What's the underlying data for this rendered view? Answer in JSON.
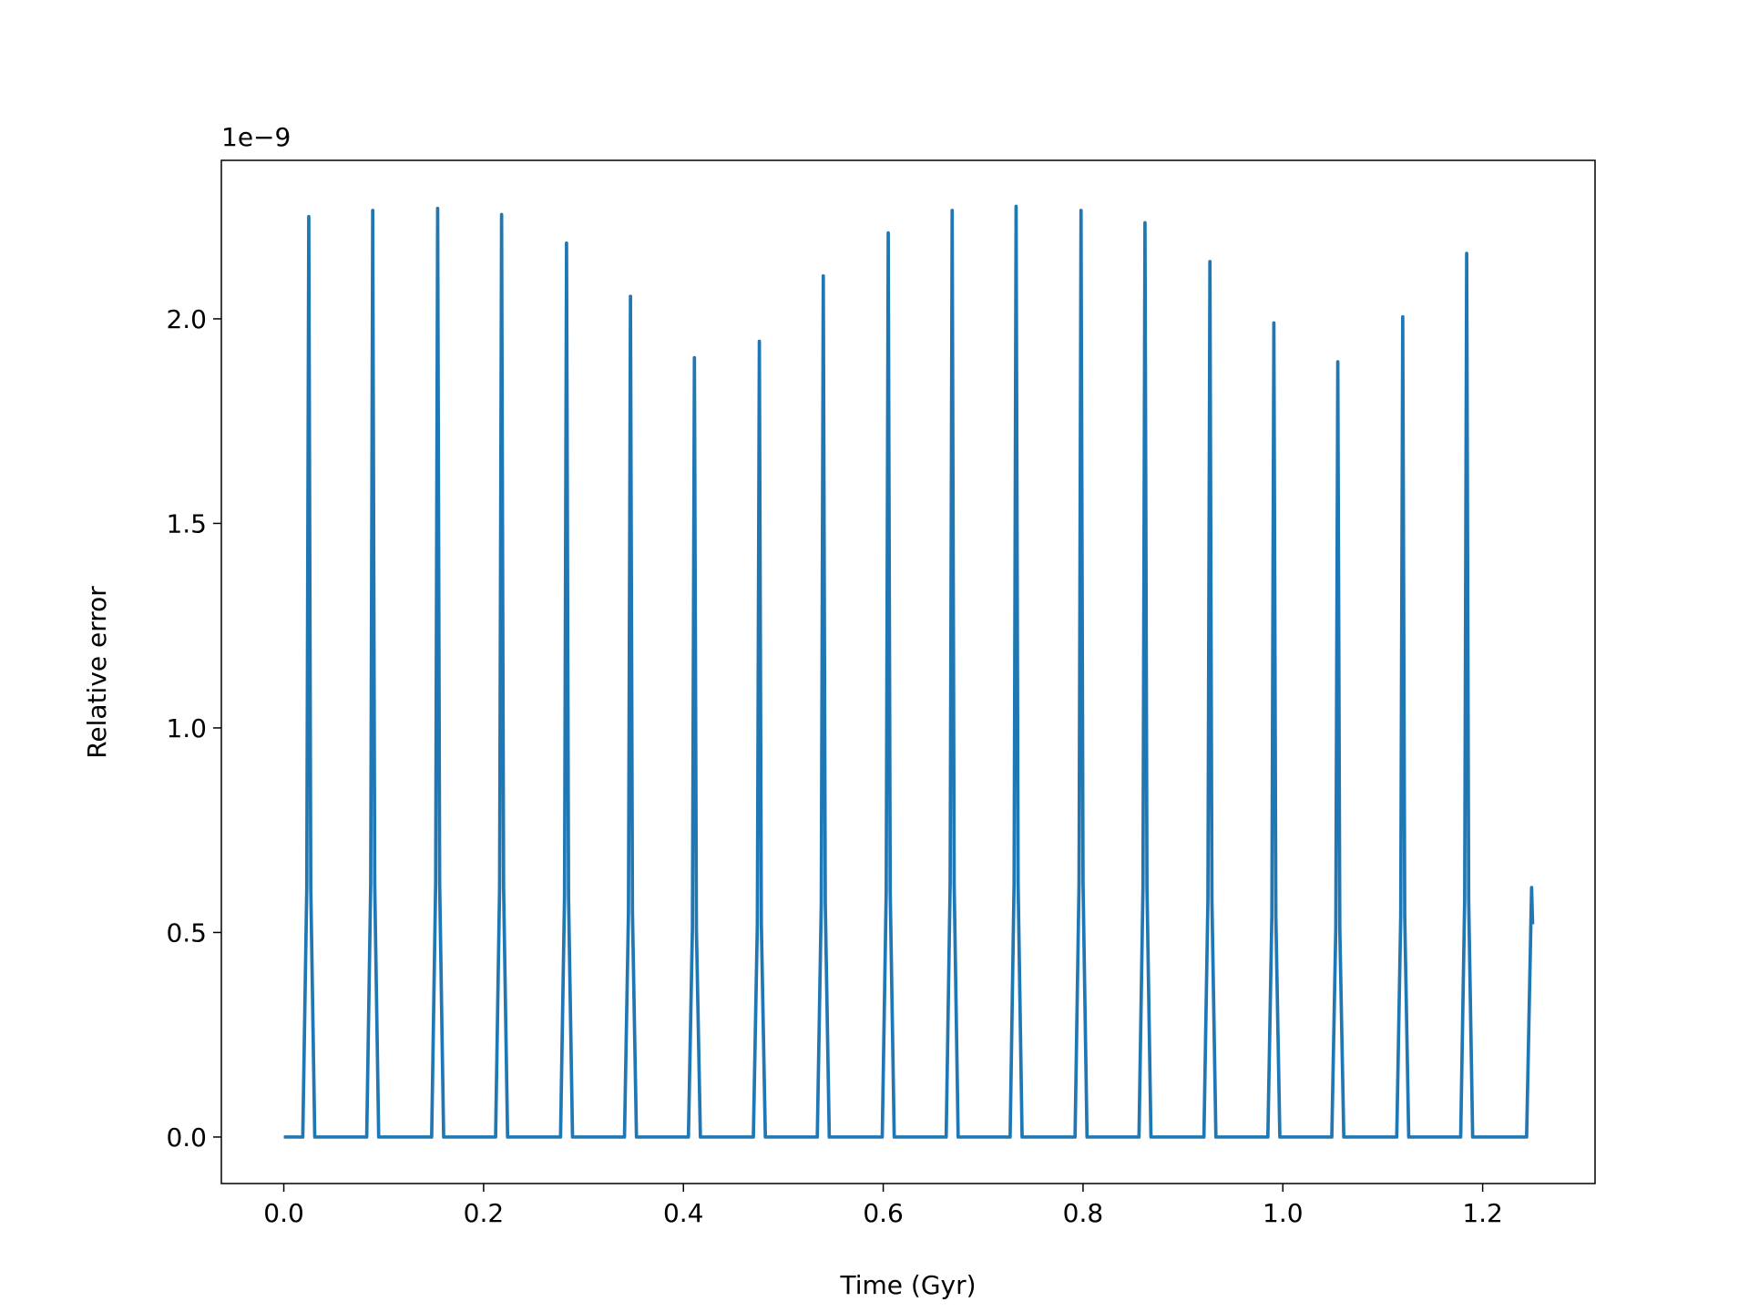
{
  "chart_data": {
    "type": "line",
    "xlabel": "Time (Gyr)",
    "ylabel": "Relative error",
    "offset_label": "1e−9",
    "xlim": [
      -0.0625,
      1.3125
    ],
    "ylim": [
      -0.1137,
      2.3874
    ],
    "xticks": [
      {
        "value": 0,
        "label": "0.0"
      },
      0.2,
      0.4,
      0.6,
      0.8,
      {
        "value": 1,
        "label": "1.0"
      },
      1.2
    ],
    "yticks": [
      {
        "value": 0,
        "label": "0.0"
      },
      0.5,
      {
        "value": 1,
        "label": "1.0"
      },
      1.5,
      {
        "value": 2,
        "label": "2.0"
      }
    ],
    "series": [
      {
        "color": "#1f77b4",
        "x": [
          0,
          0.019,
          0.023,
          0.025,
          0.027,
          0.031,
          0.083,
          0.087,
          0.089,
          0.091,
          0.095,
          0.148,
          0.152,
          0.154,
          0.156,
          0.16,
          0.212,
          0.216,
          0.218,
          0.22,
          0.224,
          0.277,
          0.281,
          0.283,
          0.285,
          0.289,
          0.341,
          0.345,
          0.347,
          0.349,
          0.353,
          0.405,
          0.409,
          0.411,
          0.413,
          0.417,
          0.47,
          0.474,
          0.476,
          0.478,
          0.482,
          0.534,
          0.538,
          0.54,
          0.542,
          0.546,
          0.599,
          0.603,
          0.605,
          0.607,
          0.611,
          0.663,
          0.667,
          0.669,
          0.671,
          0.675,
          0.727,
          0.731,
          0.733,
          0.735,
          0.739,
          0.792,
          0.796,
          0.798,
          0.8,
          0.804,
          0.856,
          0.86,
          0.862,
          0.864,
          0.868,
          0.921,
          0.925,
          0.927,
          0.929,
          0.933,
          0.985,
          0.989,
          0.991,
          0.993,
          0.997,
          1.049,
          1.053,
          1.055,
          1.057,
          1.061,
          1.114,
          1.118,
          1.12,
          1.122,
          1.126,
          1.178,
          1.182,
          1.184,
          1.186,
          1.19,
          1.244,
          1.249,
          1.25
        ],
        "values": [
          0,
          0,
          0.61,
          2.25,
          0.61,
          0,
          0,
          0.62,
          2.265,
          0.62,
          0,
          0,
          0.62,
          2.27,
          0.62,
          0,
          0,
          0.61,
          2.255,
          0.61,
          0,
          0,
          0.59,
          2.185,
          0.59,
          0,
          0,
          0.55,
          2.055,
          0.55,
          0,
          0,
          0.51,
          1.905,
          0.51,
          0,
          0,
          0.52,
          1.945,
          0.52,
          0,
          0,
          0.57,
          2.105,
          0.57,
          0,
          0,
          0.6,
          2.21,
          0.6,
          0,
          0,
          0.62,
          2.265,
          0.62,
          0,
          0,
          0.62,
          2.275,
          0.62,
          0,
          0,
          0.62,
          2.265,
          0.62,
          0,
          0,
          0.61,
          2.235,
          0.61,
          0,
          0,
          0.58,
          2.14,
          0.58,
          0,
          0,
          0.54,
          1.99,
          0.54,
          0,
          0,
          0.51,
          1.895,
          0.51,
          0,
          0,
          0.54,
          2.005,
          0.54,
          0,
          0,
          0.58,
          2.16,
          0.58,
          0,
          0,
          0.61,
          0.52
        ]
      }
    ]
  }
}
